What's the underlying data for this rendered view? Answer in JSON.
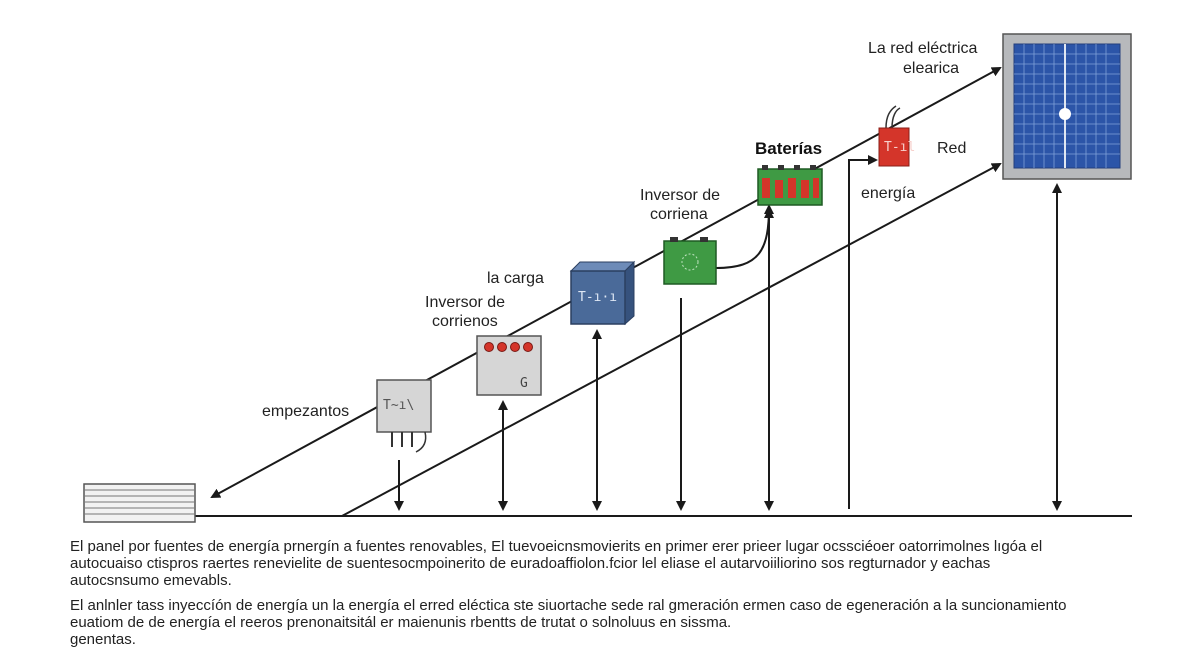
{
  "labels": {
    "grid_top": [
      "La red eléctrica",
      "elearica"
    ],
    "batteries": "Baterías",
    "red": "Red",
    "energia": "energía",
    "inverter_top": [
      "Inversor de",
      "corriena"
    ],
    "la_carga": "la carga",
    "inverter_mid": [
      "Inversor de",
      "corrienos"
    ],
    "empezantos": "empezantos"
  },
  "device_text": {
    "box1": "T~ı\\",
    "box2_corner": "G",
    "box3": "T-ı·ı",
    "red_module": "T-ıl"
  },
  "caption": {
    "para1": [
      "El panel por fuentes de energía prnergín a fuentes renovables,  El tuevoeicnsmovierits en primer erer prieer lugar ocssciéoer oatorrimolnes lıgóa el",
      "autocuaiso ctispros raertes renevielite de suentesocmpoinerito de euradoaffiolon.fcior lel eliase el autarvoiiliorino sos regturnador y eachas",
      "autocsnsumo emevabls."
    ],
    "para2": [
      "El anlnler tass inyeccíón de energía un la energía el erred eléctica ste siuortache sede ral gmeración ermen caso de egeneración  a la suncionamiento",
      "euatiom de de energía el reeros prenonaitsitál er maienunis rbentts de trutat o solnoluus en sissma.",
      "genentas."
    ]
  },
  "colors": {
    "line": "#1a1a1a",
    "solar_panel": "#2c55a8",
    "solar_frame": "#b7b9bc",
    "inverter_blue": "#4a6a99",
    "battery_green": "#3f9a44",
    "battery_red": "#d4352a",
    "gray_box": "#d6d6d6"
  },
  "icons": [
    "solar-panel-icon",
    "battery-icon",
    "inverter-icon",
    "meter-icon",
    "load-icon",
    "grid-module-icon",
    "ground-block-icon"
  ]
}
